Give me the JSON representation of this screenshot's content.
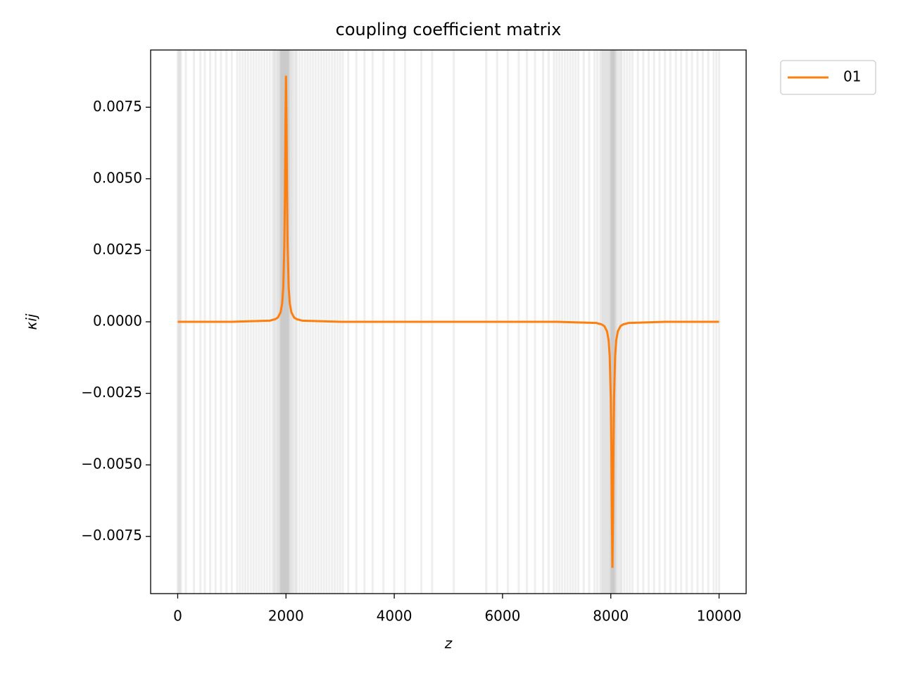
{
  "chart_data": {
    "type": "line",
    "title": "coupling coefficient matrix",
    "xlabel": "z",
    "ylabel": "κij",
    "x": [
      0,
      1000,
      1700,
      1800,
      1850,
      1900,
      1930,
      1950,
      1970,
      1980,
      1990,
      2000,
      2010,
      2020,
      2030,
      2050,
      2070,
      2100,
      2150,
      2200,
      2300,
      3000,
      5000,
      7000,
      7730,
      7830,
      7880,
      7930,
      7960,
      7980,
      8000,
      8010,
      8020,
      8030,
      8040,
      8050,
      8060,
      8080,
      8100,
      8130,
      8180,
      8230,
      8330,
      9000,
      10000
    ],
    "series": [
      {
        "name": "01",
        "color": "#ff7f0e",
        "values": [
          0,
          0,
          4e-05,
          9e-05,
          0.00015,
          0.00033,
          0.00065,
          0.0012,
          0.0027,
          0.0043,
          0.0069,
          0.0086,
          0.0069,
          0.0043,
          0.0027,
          0.0012,
          0.00065,
          0.00033,
          0.00015,
          9e-05,
          4e-05,
          0,
          0,
          0,
          -4e-05,
          -9e-05,
          -0.00015,
          -0.00033,
          -0.00065,
          -0.0012,
          -0.0027,
          -0.0043,
          -0.0069,
          -0.0086,
          -0.0069,
          -0.0043,
          -0.0027,
          -0.0012,
          -0.00065,
          -0.00033,
          -0.00015,
          -9e-05,
          -4e-05,
          0,
          0
        ]
      }
    ],
    "vlines": {
      "color": "#808080",
      "alpha": 0.13,
      "x": [
        0,
        20,
        40,
        60,
        150,
        300,
        420,
        500,
        600,
        700,
        800,
        900,
        1000,
        1100,
        1150,
        1200,
        1250,
        1300,
        1350,
        1400,
        1450,
        1500,
        1550,
        1600,
        1650,
        1700,
        1750,
        1780,
        1800,
        1830,
        1850,
        1870,
        1890,
        1900,
        1910,
        1920,
        1930,
        1940,
        1950,
        1960,
        1970,
        1980,
        1990,
        2000,
        2010,
        2020,
        2030,
        2040,
        2050,
        2060,
        2080,
        2100,
        2120,
        2150,
        2180,
        2200,
        2250,
        2300,
        2350,
        2400,
        2450,
        2500,
        2550,
        2600,
        2650,
        2700,
        2750,
        2800,
        2850,
        2900,
        2950,
        3000,
        3050,
        3150,
        3300,
        3450,
        3600,
        3800,
        4000,
        4200,
        4500,
        4700,
        5100,
        5700,
        5900,
        6100,
        6300,
        6450,
        6600,
        6750,
        6850,
        6950,
        7000,
        7050,
        7100,
        7150,
        7200,
        7250,
        7300,
        7350,
        7400,
        7500,
        7600,
        7700,
        7750,
        7800,
        7830,
        7850,
        7870,
        7890,
        7910,
        7930,
        7950,
        7970,
        7990,
        8000,
        8010,
        8020,
        8030,
        8040,
        8050,
        8060,
        8070,
        8080,
        8100,
        8120,
        8150,
        8180,
        8200,
        8250,
        8300,
        8350,
        8400,
        8500,
        8600,
        8700,
        8800,
        8900,
        9000,
        9100,
        9200,
        9300,
        9400,
        9500,
        9600,
        9700,
        9800,
        9900,
        9950,
        10000
      ]
    },
    "xlim": [
      -500,
      10500
    ],
    "xticks": [
      0,
      2000,
      4000,
      6000,
      8000,
      10000
    ],
    "ylim": [
      -0.0095,
      0.0095
    ],
    "yticks": [
      {
        "value": -0.0075,
        "label": "−0.0075"
      },
      {
        "value": -0.005,
        "label": "−0.0050"
      },
      {
        "value": -0.0025,
        "label": "−0.0025"
      },
      {
        "value": 0,
        "label": "0.0000"
      },
      0.0025,
      {
        "value": 0.005,
        "label": "0.0050"
      },
      0.0075
    ],
    "legend": "outside-upper-right"
  }
}
